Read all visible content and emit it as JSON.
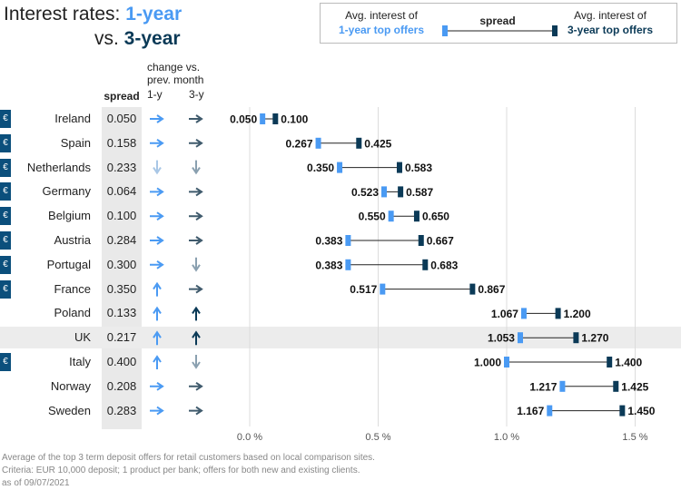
{
  "title": {
    "prefix": "Interest rates: ",
    "highlight1": "1-year",
    "line2_prefix": "vs. ",
    "highlight2": "3-year"
  },
  "legend": {
    "left_line1": "Avg. interest of",
    "left_line2": "1-year top offers",
    "middle": "spread",
    "right_line1": "Avg. interest of",
    "right_line2": "3-year top offers"
  },
  "headers": {
    "spread": "spread",
    "change_line1": "change vs.",
    "change_line2": "prev. month",
    "col_1y": "1-y",
    "col_3y": "3-y"
  },
  "colors": {
    "one_year": "#4a9af3",
    "three_year": "#0b3a57",
    "arrow_faded": "#a9c7e6",
    "euro_badge": "#0b4f7c"
  },
  "icons": {
    "euro": "€"
  },
  "chart_data": {
    "type": "dumbbell",
    "x_axis": {
      "ticks": [
        0.0,
        0.5,
        1.0,
        1.5
      ],
      "tick_labels": [
        "0.0 %",
        "0.5 %",
        "1.0 %",
        "1.5 %"
      ],
      "grid": true
    },
    "highlighted": "UK",
    "rows": [
      {
        "country": "Ireland",
        "euro": true,
        "spread": "0.050",
        "change_1y": "right",
        "change_3y": "right",
        "one_year": 0.05,
        "three_year": 0.1,
        "one_year_label": "0.050",
        "three_year_label": "0.100"
      },
      {
        "country": "Spain",
        "euro": true,
        "spread": "0.158",
        "change_1y": "right",
        "change_3y": "right",
        "one_year": 0.267,
        "three_year": 0.425,
        "one_year_label": "0.267",
        "three_year_label": "0.425"
      },
      {
        "country": "Netherlands",
        "euro": true,
        "spread": "0.233",
        "change_1y": "down",
        "change_3y": "down",
        "one_year": 0.35,
        "three_year": 0.583,
        "one_year_label": "0.350",
        "three_year_label": "0.583"
      },
      {
        "country": "Germany",
        "euro": true,
        "spread": "0.064",
        "change_1y": "right",
        "change_3y": "right",
        "one_year": 0.523,
        "three_year": 0.587,
        "one_year_label": "0.523",
        "three_year_label": "0.587"
      },
      {
        "country": "Belgium",
        "euro": true,
        "spread": "0.100",
        "change_1y": "right",
        "change_3y": "right",
        "one_year": 0.55,
        "three_year": 0.65,
        "one_year_label": "0.550",
        "three_year_label": "0.650"
      },
      {
        "country": "Austria",
        "euro": true,
        "spread": "0.284",
        "change_1y": "right",
        "change_3y": "right",
        "one_year": 0.383,
        "three_year": 0.667,
        "one_year_label": "0.383",
        "three_year_label": "0.667"
      },
      {
        "country": "Portugal",
        "euro": true,
        "spread": "0.300",
        "change_1y": "right",
        "change_3y": "down",
        "one_year": 0.383,
        "three_year": 0.683,
        "one_year_label": "0.383",
        "three_year_label": "0.683"
      },
      {
        "country": "France",
        "euro": true,
        "spread": "0.350",
        "change_1y": "up",
        "change_3y": "right",
        "one_year": 0.517,
        "three_year": 0.867,
        "one_year_label": "0.517",
        "three_year_label": "0.867"
      },
      {
        "country": "Poland",
        "euro": false,
        "spread": "0.133",
        "change_1y": "up",
        "change_3y": "up",
        "one_year": 1.067,
        "three_year": 1.2,
        "one_year_label": "1.067",
        "three_year_label": "1.200"
      },
      {
        "country": "UK",
        "euro": false,
        "spread": "0.217",
        "change_1y": "up",
        "change_3y": "up",
        "one_year": 1.053,
        "three_year": 1.27,
        "one_year_label": "1.053",
        "three_year_label": "1.270"
      },
      {
        "country": "Italy",
        "euro": true,
        "spread": "0.400",
        "change_1y": "up",
        "change_3y": "down",
        "one_year": 1.0,
        "three_year": 1.4,
        "one_year_label": "1.000",
        "three_year_label": "1.400"
      },
      {
        "country": "Norway",
        "euro": false,
        "spread": "0.208",
        "change_1y": "right",
        "change_3y": "right",
        "one_year": 1.217,
        "three_year": 1.425,
        "one_year_label": "1.217",
        "three_year_label": "1.425"
      },
      {
        "country": "Sweden",
        "euro": false,
        "spread": "0.283",
        "change_1y": "right",
        "change_3y": "right",
        "one_year": 1.167,
        "three_year": 1.45,
        "one_year_label": "1.167",
        "three_year_label": "1.450"
      }
    ]
  },
  "footnotes": [
    "Average of the top 3 term deposit offers for retail customers based on local comparison sites.",
    "Criteria: EUR 10,000 deposit; 1 product per bank; offers for both new and existing clients.",
    "as of 09/07/2021"
  ]
}
